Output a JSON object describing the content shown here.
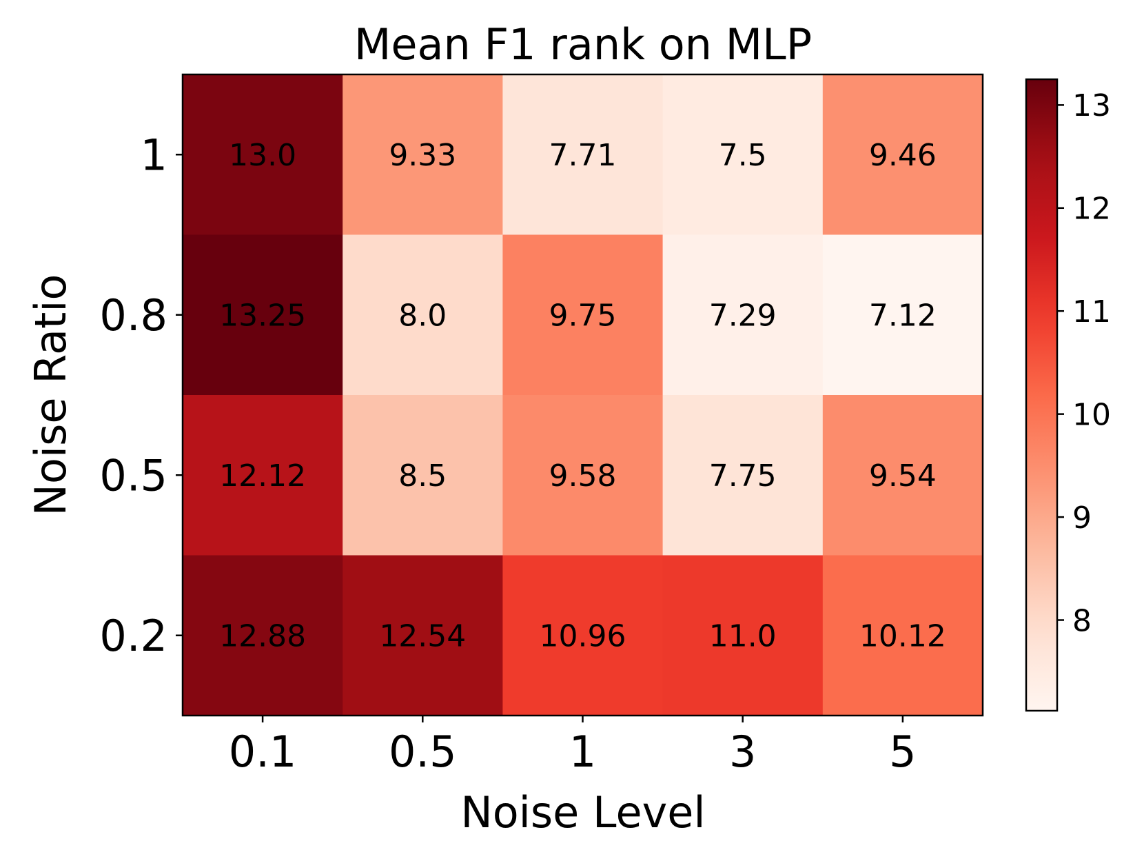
{
  "chart_data": {
    "type": "heatmap",
    "title": "Mean F1 rank on MLP",
    "xlabel": "Noise Level",
    "ylabel": "Noise Ratio",
    "x_categories": [
      "0.1",
      "0.5",
      "1",
      "3",
      "5"
    ],
    "y_categories": [
      "1",
      "0.8",
      "0.5",
      "0.2"
    ],
    "values": [
      [
        13.0,
        9.33,
        7.71,
        7.5,
        9.46
      ],
      [
        13.25,
        8.0,
        9.75,
        7.29,
        7.12
      ],
      [
        12.12,
        8.5,
        9.58,
        7.75,
        9.54
      ],
      [
        12.88,
        12.54,
        10.96,
        11.0,
        10.12
      ]
    ],
    "cell_labels": [
      [
        "13.0",
        "9.33",
        "7.71",
        "7.5",
        "9.46"
      ],
      [
        "13.25",
        "8.0",
        "9.75",
        "7.29",
        "7.12"
      ],
      [
        "12.12",
        "8.5",
        "9.58",
        "7.75",
        "9.54"
      ],
      [
        "12.88",
        "12.54",
        "10.96",
        "11.0",
        "10.12"
      ]
    ],
    "colormap": "Reds",
    "colorbar": {
      "vmin": 7.12,
      "vmax": 13.25,
      "ticks": [
        8,
        9,
        10,
        11,
        12,
        13
      ],
      "tick_labels": [
        "8",
        "9",
        "10",
        "11",
        "12",
        "13"
      ]
    },
    "colors": {
      "text": "#000000",
      "frame": "#000000",
      "background": "#ffffff"
    }
  }
}
